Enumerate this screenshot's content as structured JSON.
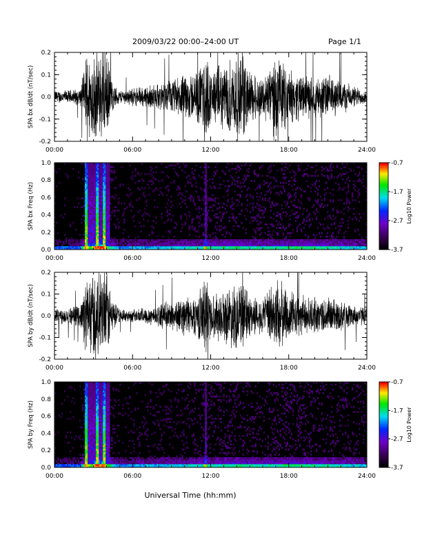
{
  "header": {
    "title": "2009/03/22  00:00–24:00 UT",
    "page": "Page 1/1"
  },
  "footer": {
    "xlabel": "Universal Time (hh:mm)"
  },
  "chart_data": [
    {
      "type": "line",
      "ylabel": "SPA bx dB/dt (nT/sec)",
      "ylim": [
        -0.2,
        0.2
      ],
      "yticks": [
        "0.2",
        "0.1",
        "0.0",
        "-0.1",
        "-0.2"
      ],
      "ytick_values": [
        0.2,
        0.1,
        0.0,
        -0.1,
        -0.2
      ],
      "xlim": [
        0,
        24
      ],
      "xticks": [
        "00:00",
        "06:00",
        "12:00",
        "18:00",
        "24:00"
      ],
      "xtick_values": [
        0,
        6,
        12,
        18,
        24
      ],
      "series": [
        {
          "values": "noise trace",
          "envelope_hours": [
            0,
            1,
            2,
            2.5,
            3,
            3.5,
            4,
            4.5,
            5,
            6,
            7,
            8,
            9,
            10,
            11,
            11.7,
            12,
            13,
            14,
            14.5,
            15,
            16,
            17,
            18,
            19,
            20,
            21,
            22,
            23,
            24
          ],
          "envelope_amplitude": [
            0.03,
            0.03,
            0.04,
            0.2,
            0.2,
            0.2,
            0.2,
            0.06,
            0.03,
            0.04,
            0.05,
            0.06,
            0.08,
            0.1,
            0.12,
            0.2,
            0.12,
            0.15,
            0.2,
            0.2,
            0.12,
            0.09,
            0.2,
            0.12,
            0.1,
            0.09,
            0.1,
            0.08,
            0.05,
            0.03
          ]
        }
      ]
    },
    {
      "type": "heatmap",
      "ylabel": "SPA bx Freq (Hz)",
      "ylim": [
        0.0,
        1.0
      ],
      "yticks": [
        "1.0",
        "0.8",
        "0.6",
        "0.4",
        "0.2",
        "0.0"
      ],
      "ytick_values": [
        1.0,
        0.8,
        0.6,
        0.4,
        0.2,
        0.0
      ],
      "xlim": [
        0,
        24
      ],
      "xticks": [
        "00:00",
        "06:00",
        "12:00",
        "18:00",
        "24:00"
      ],
      "xtick_values": [
        0,
        6,
        12,
        18,
        24
      ],
      "colorbar": {
        "label": "Log10 Power",
        "range": [
          -3.7,
          -0.7
        ],
        "ticks": [
          "-0.7",
          "-1.7",
          "-2.7",
          "-3.7"
        ],
        "tick_values": [
          -0.7,
          -1.7,
          -2.7,
          -3.7
        ],
        "colormap": "rainbow (black-purple-blue-cyan-green-yellow-red)"
      }
    },
    {
      "type": "line",
      "ylabel": "SPA by dB/dt (nT/sec)",
      "ylim": [
        -0.2,
        0.2
      ],
      "yticks": [
        "0.2",
        "0.1",
        "0.0",
        "-0.1",
        "-0.2"
      ],
      "ytick_values": [
        0.2,
        0.1,
        0.0,
        -0.1,
        -0.2
      ],
      "xlim": [
        0,
        24
      ],
      "xticks": [
        "00:00",
        "06:00",
        "12:00",
        "18:00",
        "24:00"
      ],
      "xtick_values": [
        0,
        6,
        12,
        18,
        24
      ],
      "series": [
        {
          "values": "noise trace",
          "envelope_hours": [
            0,
            1,
            2,
            2.5,
            3,
            3.5,
            4,
            4.5,
            5,
            6,
            7,
            8,
            9,
            10,
            11,
            11.7,
            12,
            13,
            14,
            14.5,
            15,
            16,
            17,
            18,
            19,
            20,
            21,
            22,
            23,
            24
          ],
          "envelope_amplitude": [
            0.04,
            0.04,
            0.05,
            0.2,
            0.2,
            0.2,
            0.2,
            0.08,
            0.03,
            0.03,
            0.04,
            0.05,
            0.07,
            0.09,
            0.1,
            0.2,
            0.1,
            0.12,
            0.16,
            0.15,
            0.1,
            0.08,
            0.18,
            0.12,
            0.09,
            0.08,
            0.09,
            0.07,
            0.05,
            0.04
          ]
        }
      ]
    },
    {
      "type": "heatmap",
      "ylabel": "SPA by Freq (Hz)",
      "ylim": [
        0.0,
        1.0
      ],
      "yticks": [
        "1.0",
        "0.8",
        "0.6",
        "0.4",
        "0.2",
        "0.0"
      ],
      "ytick_values": [
        1.0,
        0.8,
        0.6,
        0.4,
        0.2,
        0.0
      ],
      "xlim": [
        0,
        24
      ],
      "xticks": [
        "00:00",
        "06:00",
        "12:00",
        "18:00",
        "24:00"
      ],
      "xtick_values": [
        0,
        6,
        12,
        18,
        24
      ],
      "colorbar": {
        "label": "Log10 Power",
        "range": [
          -3.7,
          -0.7
        ],
        "ticks": [
          "-0.7",
          "-1.7",
          "-2.7",
          "-3.7"
        ],
        "tick_values": [
          -0.7,
          -1.7,
          -2.7,
          -3.7
        ],
        "colormap": "rainbow (black-purple-blue-cyan-green-yellow-red)"
      }
    }
  ]
}
